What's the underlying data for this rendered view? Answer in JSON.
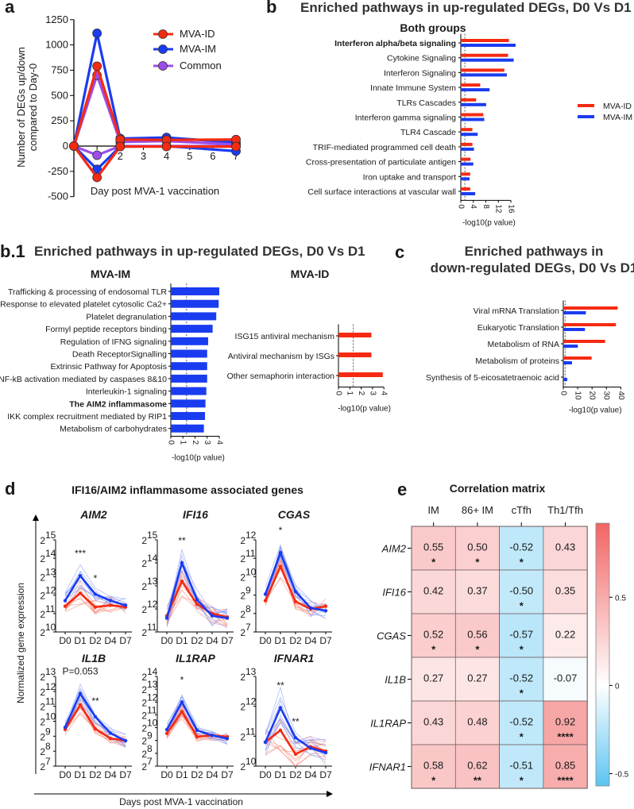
{
  "colors": {
    "mva_id": "#f52a12",
    "mva_im": "#1a3cf0",
    "common": "#9b4dea",
    "heat_pos": "#f05050",
    "heat_neg": "#5bc4f2"
  },
  "panels": {
    "a": {
      "label": "a"
    },
    "b": {
      "label": "b",
      "title": "Enriched pathways in up-regulated DEGs, D0 Vs D1",
      "subtitle": "Both groups"
    },
    "b1": {
      "label": "b.1",
      "title": "Enriched pathways in up-regulated DEGs, D0 Vs D1",
      "sub_im": "MVA-IM",
      "sub_id": "MVA-ID"
    },
    "c": {
      "label": "c",
      "title_lines": [
        "Enriched pathways in",
        "down-regulated DEGs, D0 Vs D1"
      ]
    },
    "d": {
      "label": "d",
      "title": "IFI16/AIM2 inflammasome associated genes",
      "ylabel": "Normalized gene expression",
      "xlabel": "Days post MVA-1 vaccination",
      "tick_base": "2"
    },
    "e": {
      "label": "e",
      "title": "Correlation matrix"
    }
  },
  "chart_data": [
    {
      "id": "a",
      "type": "line",
      "ylabel_lines": [
        "Number of DEGs up/down",
        "compared to Day-0"
      ],
      "xlabel": "Day post  MVA-1 vaccination",
      "x": [
        0,
        1,
        2,
        4,
        7
      ],
      "xticks": [
        1,
        2,
        3,
        4,
        5,
        6,
        7
      ],
      "yticks": [
        -500,
        -250,
        0,
        250,
        500,
        750,
        1000,
        1250
      ],
      "ylim": [
        -500,
        1250
      ],
      "xlim": [
        0,
        7
      ],
      "legend": "top-right",
      "series": [
        {
          "name": "MVA-IM",
          "color_key": "mva_im",
          "up": [
            0,
            1115,
            75,
            85,
            35
          ],
          "down": [
            0,
            -230,
            -5,
            0,
            -50
          ]
        },
        {
          "name": "Common",
          "color_key": "common",
          "up": [
            0,
            700,
            40,
            50,
            15
          ],
          "down": [
            0,
            -90,
            0,
            0,
            0
          ]
        },
        {
          "name": "MVA-ID",
          "color_key": "mva_id",
          "up": [
            0,
            790,
            65,
            60,
            65
          ],
          "down": [
            0,
            -310,
            -5,
            -5,
            -5
          ]
        }
      ],
      "legend_order": [
        "MVA-ID",
        "MVA-IM",
        "Common"
      ]
    },
    {
      "id": "b",
      "type": "bar",
      "orientation": "horizontal",
      "xlabel": "-log10(p value)",
      "xticks": [
        0,
        4,
        8,
        12,
        16
      ],
      "xlim": [
        0,
        17.5
      ],
      "threshold": 1.3,
      "categories": [
        "Interferon alpha/beta signaling",
        "Cytokine Signaling",
        "Interferon Signaling",
        "Innate Immune System",
        "TLRs Cascades",
        "Interferon gamma signaling",
        "TLR4 Cascade",
        "TRIF-mediated programmed cell death",
        "Cross-presentation of particulate antigen",
        "Iron uptake and transport",
        "Cell surface interactions at vascular wall"
      ],
      "bold_categories": [
        0
      ],
      "series": [
        {
          "name": "MVA-ID",
          "color_key": "mva_id",
          "values": [
            15.4,
            15.1,
            13.9,
            6.2,
            4.9,
            7.2,
            3.7,
            3.7,
            3.1,
            3.0,
            3.0
          ]
        },
        {
          "name": "MVA-IM",
          "color_key": "mva_im",
          "values": [
            17.5,
            16.9,
            14.7,
            9.2,
            8.1,
            7.5,
            5.4,
            4.2,
            4.0,
            2.8,
            4.6
          ]
        }
      ],
      "legend": "right"
    },
    {
      "id": "b1_im",
      "type": "bar",
      "orientation": "horizontal",
      "xlabel": "-log10(p value)",
      "xticks": [
        0,
        1,
        2,
        3,
        4
      ],
      "xlim": [
        0,
        4
      ],
      "threshold": 1.3,
      "categories": [
        "Trafficking & processing of endosomal TLR",
        "Response to elevated platelet cytosolic Ca2+",
        "Platelet degranulation",
        "Formyl peptide receptors binding",
        "Regulation of IFNG signaling",
        "Death ReceptorSignalling",
        "Extrinsic Pathway for Apoptosis",
        "NF-kB activation mediated by caspases 8&10",
        "Interleukin-1 signaling",
        "The AIM2 inflammasome",
        "IKK complex recruitment mediated by RIP1",
        "Metabolism of carbohydrates"
      ],
      "bold_categories": [
        9
      ],
      "series": [
        {
          "name": "MVA-IM",
          "color_key": "mva_im",
          "values": [
            4.0,
            3.95,
            3.75,
            3.45,
            3.08,
            3.0,
            3.0,
            3.0,
            2.93,
            2.86,
            2.82,
            2.73
          ]
        }
      ]
    },
    {
      "id": "b1_id",
      "type": "bar",
      "orientation": "horizontal",
      "xlabel": "-log10(p value)",
      "xticks": [
        0,
        1,
        2,
        3,
        4
      ],
      "xlim": [
        0,
        4
      ],
      "threshold": 1.3,
      "categories": [
        "ISG15 antiviral mechanism",
        "Antiviral mechanism by ISGs",
        "Other semaphorin interaction"
      ],
      "bold_categories": [],
      "series": [
        {
          "name": "MVA-ID",
          "color_key": "mva_id",
          "values": [
            2.9,
            2.9,
            3.9
          ]
        }
      ]
    },
    {
      "id": "c",
      "type": "bar",
      "orientation": "horizontal",
      "xlabel": "-log10(p value)",
      "xticks": [
        0,
        10,
        20,
        30,
        40
      ],
      "xlim": [
        0,
        40
      ],
      "threshold": 1.3,
      "categories": [
        "Viral mRNA Translation",
        "Eukaryotic Translation",
        "Metabolism of RNA",
        "Metabolism of proteins",
        "Synthesis of 5-eicosatetraenoic acid"
      ],
      "bold_categories": [],
      "series": [
        {
          "name": "MVA-ID",
          "color_key": "mva_id",
          "values": [
            37.8,
            36.6,
            29.1,
            19.7,
            0
          ]
        },
        {
          "name": "MVA-IM",
          "color_key": "mva_im",
          "values": [
            15.7,
            15.1,
            10.1,
            6.1,
            2.8
          ]
        }
      ]
    },
    {
      "id": "d",
      "type": "line",
      "yscale": "log2",
      "x": [
        "D0",
        "D1",
        "D2",
        "D4",
        "D7"
      ],
      "genes": [
        {
          "name": "AIM2",
          "ylim_exp": [
            10,
            15
          ],
          "mva_im": [
            11.7,
            13.05,
            12.05,
            11.7,
            11.45
          ],
          "mva_id": [
            11.4,
            12.1,
            11.35,
            11.45,
            11.35
          ],
          "annotations": [
            {
              "day": 1,
              "text": "***"
            },
            {
              "day": 2,
              "text": "*"
            }
          ]
        },
        {
          "name": "IFI16",
          "ylim_exp": [
            11,
            15
          ],
          "mva_im": [
            11.6,
            14.0,
            12.4,
            11.7,
            11.6
          ],
          "mva_id": [
            11.7,
            13.2,
            12.2,
            11.8,
            11.65
          ],
          "annotations": [
            {
              "day": 1,
              "text": "**"
            }
          ]
        },
        {
          "name": "CGAS",
          "ylim_exp": [
            7,
            12
          ],
          "mva_im": [
            9.05,
            11.3,
            9.2,
            8.3,
            8.15
          ],
          "mva_id": [
            8.7,
            10.55,
            8.65,
            8.25,
            8.4
          ],
          "annotations": [
            {
              "day": 1,
              "text": "*"
            }
          ]
        },
        {
          "name": "IL1B",
          "ylim_exp": [
            7,
            13
          ],
          "mva_im": [
            9.6,
            11.85,
            10.3,
            9.2,
            8.7
          ],
          "mva_id": [
            9.45,
            11.1,
            9.5,
            8.85,
            8.7
          ],
          "annotations": [
            {
              "day": 1,
              "text": "P=0.053"
            },
            {
              "day": 2,
              "text": "**"
            }
          ]
        },
        {
          "name": "IL1RAP",
          "ylim_exp": [
            7,
            14
          ],
          "mva_im": [
            9.85,
            12.0,
            9.8,
            9.4,
            9.15
          ],
          "mva_id": [
            9.55,
            11.25,
            9.3,
            9.4,
            9.3
          ],
          "annotations": [
            {
              "day": 1,
              "text": "*"
            }
          ]
        },
        {
          "name": "IFNAR1",
          "ylim_exp": [
            10,
            13
          ],
          "mva_im": [
            10.8,
            11.95,
            10.95,
            10.6,
            10.45
          ],
          "mva_id": [
            10.8,
            11.2,
            10.4,
            10.65,
            10.5
          ],
          "annotations": [
            {
              "day": 1,
              "text": "**"
            },
            {
              "day": 2,
              "text": "**"
            }
          ]
        }
      ]
    },
    {
      "id": "e",
      "type": "heatmap",
      "columns": [
        "IM",
        "86+ IM",
        "cTfh",
        "Th1/Tfh"
      ],
      "rows": [
        "AIM2",
        "IFI16",
        "CGAS",
        "IL1B",
        "IL1RAP",
        "IFNAR1"
      ],
      "values": [
        [
          0.55,
          0.5,
          -0.52,
          0.43
        ],
        [
          0.42,
          0.37,
          -0.5,
          0.35
        ],
        [
          0.52,
          0.56,
          -0.57,
          0.22
        ],
        [
          0.27,
          0.27,
          -0.52,
          -0.07
        ],
        [
          0.43,
          0.48,
          -0.52,
          0.92
        ],
        [
          0.58,
          0.62,
          -0.51,
          0.85
        ]
      ],
      "labels": [
        [
          "0.55",
          "0.50",
          "-0.52",
          "0.43"
        ],
        [
          "0.42",
          "0.37",
          "-0.50",
          "0.35"
        ],
        [
          "0.52",
          "0.56",
          "-0.57",
          "0.22"
        ],
        [
          "0.27",
          "0.27",
          "-0.52",
          "-0.07"
        ],
        [
          "0.43",
          "0.48",
          "-0.52",
          "0.92"
        ],
        [
          "0.58",
          "0.62",
          "-0.51",
          "0.85"
        ]
      ],
      "stars": [
        [
          "*",
          "*",
          "*",
          ""
        ],
        [
          "",
          "",
          "*",
          ""
        ],
        [
          "*",
          "*",
          "*",
          ""
        ],
        [
          "",
          "",
          "*",
          ""
        ],
        [
          "",
          "",
          "*",
          "****"
        ],
        [
          "*",
          "**",
          "*",
          "****"
        ]
      ],
      "colorbar_ticks": [
        "0.5",
        "0",
        "-0.5"
      ],
      "colorbar_tick_values": [
        0.5,
        0,
        -0.5
      ],
      "colorbar_range": [
        -0.57,
        0.92
      ]
    }
  ]
}
